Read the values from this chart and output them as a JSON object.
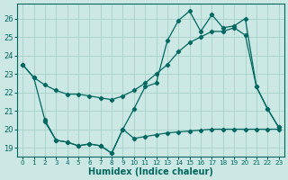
{
  "xlabel": "Humidex (Indice chaleur)",
  "bg_color": "#cce8e4",
  "grid_color": "#aad4cc",
  "line_color": "#006860",
  "xlim": [
    -0.5,
    23.5
  ],
  "ylim": [
    18.5,
    26.8
  ],
  "yticks": [
    19,
    20,
    21,
    22,
    23,
    24,
    25,
    26
  ],
  "xticks": [
    0,
    1,
    2,
    3,
    4,
    5,
    6,
    7,
    8,
    9,
    10,
    11,
    12,
    13,
    14,
    15,
    16,
    17,
    18,
    19,
    20,
    21,
    22,
    23
  ],
  "lineA_x": [
    0,
    1,
    2,
    3,
    4,
    5,
    6,
    7,
    8,
    9,
    10,
    11,
    12,
    13,
    14,
    15,
    16,
    17,
    18,
    19,
    20,
    21,
    22,
    23
  ],
  "lineA_y": [
    23.5,
    22.8,
    22.4,
    22.1,
    21.9,
    21.9,
    21.8,
    21.7,
    21.6,
    21.8,
    22.1,
    22.5,
    23.0,
    23.5,
    24.2,
    24.7,
    25.0,
    25.3,
    25.3,
    25.5,
    25.1,
    22.3,
    21.1,
    20.1
  ],
  "lineB_x": [
    0,
    1,
    2,
    3,
    4,
    5,
    6,
    7,
    8,
    9,
    10,
    11,
    12,
    13,
    14,
    15,
    16,
    17,
    18,
    19,
    20,
    21,
    22,
    23
  ],
  "lineB_y": [
    23.5,
    22.8,
    20.5,
    19.4,
    19.3,
    19.1,
    19.2,
    19.1,
    18.7,
    20.0,
    21.1,
    22.3,
    22.5,
    24.8,
    25.9,
    26.4,
    25.3,
    26.2,
    25.5,
    25.6,
    26.0,
    22.3,
    21.1,
    20.1
  ],
  "lineC_x": [
    2,
    3,
    4,
    5,
    6,
    7,
    8,
    9,
    10,
    11,
    12,
    13,
    14,
    15,
    16,
    17,
    18,
    19,
    20,
    21,
    22,
    23
  ],
  "lineC_y": [
    20.4,
    19.4,
    19.3,
    19.1,
    19.2,
    19.1,
    18.7,
    20.0,
    19.5,
    19.6,
    19.7,
    19.8,
    19.85,
    19.9,
    19.95,
    20.0,
    20.0,
    20.0,
    20.0,
    20.0,
    20.0,
    20.0
  ]
}
